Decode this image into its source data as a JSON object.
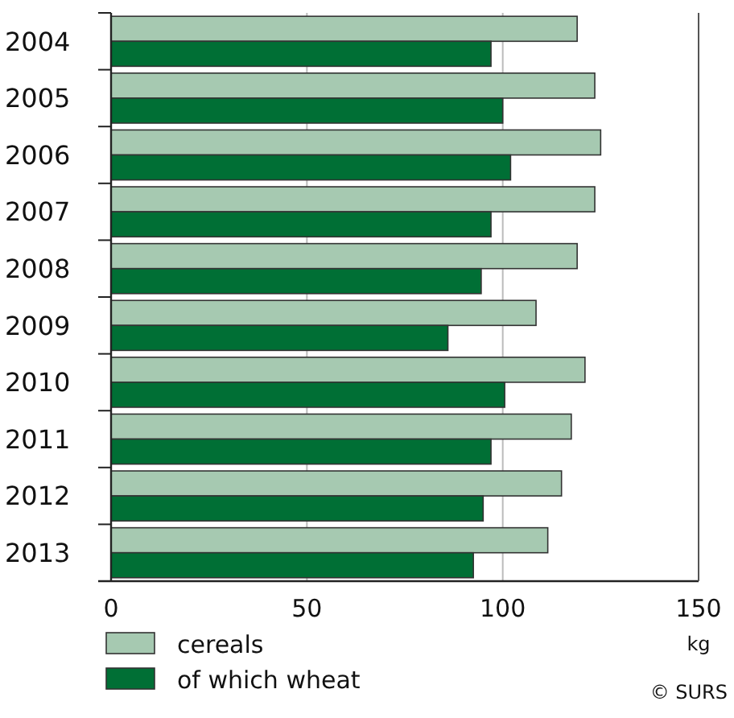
{
  "chart_data": {
    "type": "bar",
    "orientation": "horizontal",
    "categories": [
      "2004",
      "2005",
      "2006",
      "2007",
      "2008",
      "2009",
      "2010",
      "2011",
      "2012",
      "2013"
    ],
    "series": [
      {
        "name": "cereals",
        "color": "#a6c9b1",
        "values": [
          119,
          123.5,
          125,
          123.5,
          119,
          108.5,
          121,
          117.5,
          115,
          111.5
        ]
      },
      {
        "name": "of which wheat",
        "color": "#006f35",
        "values": [
          97,
          100,
          102,
          97,
          94.5,
          86,
          100.5,
          97,
          95,
          92.5
        ]
      }
    ],
    "xlim": [
      0,
      150
    ],
    "xticks": [
      0,
      50,
      100,
      150
    ],
    "xlabel": "kg",
    "grid": "x",
    "legend": "bottom left",
    "annotations": [
      "© SURS"
    ]
  }
}
